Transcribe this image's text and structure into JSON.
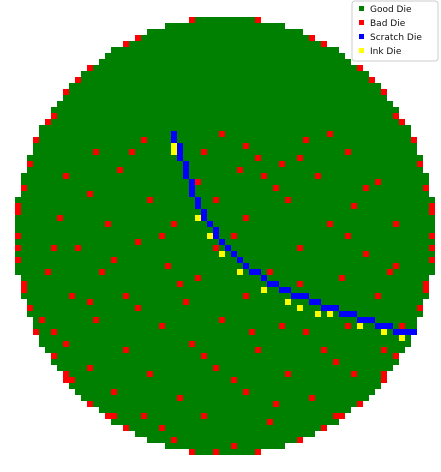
{
  "chart_data": {
    "type": "scatter",
    "title": "",
    "xlabel": "",
    "ylabel": "",
    "grid": false,
    "axes_visible": false,
    "legend_position": "top-right",
    "wafer_grid": {
      "columns": 70,
      "rows": 73
    },
    "series": [
      {
        "name": "Good Die",
        "color": "#008000"
      },
      {
        "name": "Bad Die",
        "color": "#ff0000"
      },
      {
        "name": "Scratch Die",
        "color": "#0000ff"
      },
      {
        "name": "Ink Die",
        "color": "#ffff00"
      }
    ],
    "bad_dies": [
      [
        21,
        20
      ],
      [
        34,
        19
      ],
      [
        48,
        20
      ],
      [
        52,
        19
      ],
      [
        13,
        22
      ],
      [
        31,
        22
      ],
      [
        38,
        21
      ],
      [
        47,
        23
      ],
      [
        55,
        22
      ],
      [
        8,
        26
      ],
      [
        17,
        25
      ],
      [
        30,
        27
      ],
      [
        41,
        26
      ],
      [
        50,
        26
      ],
      [
        60,
        27
      ],
      [
        12,
        29
      ],
      [
        22,
        30
      ],
      [
        33,
        30
      ],
      [
        45,
        30
      ],
      [
        56,
        31
      ],
      [
        7,
        33
      ],
      [
        15,
        34
      ],
      [
        26,
        34
      ],
      [
        38,
        33
      ],
      [
        52,
        34
      ],
      [
        63,
        34
      ],
      [
        10,
        38
      ],
      [
        20,
        37
      ],
      [
        33,
        38
      ],
      [
        47,
        38
      ],
      [
        58,
        39
      ],
      [
        5,
        42
      ],
      [
        14,
        42
      ],
      [
        25,
        41
      ],
      [
        30,
        43
      ],
      [
        42,
        42
      ],
      [
        54,
        43
      ],
      [
        62,
        42
      ],
      [
        9,
        46
      ],
      [
        18,
        46
      ],
      [
        28,
        47
      ],
      [
        38,
        46
      ],
      [
        50,
        47
      ],
      [
        60,
        46
      ],
      [
        4,
        50
      ],
      [
        13,
        50
      ],
      [
        24,
        51
      ],
      [
        34,
        50
      ],
      [
        44,
        51
      ],
      [
        55,
        51
      ],
      [
        64,
        51
      ],
      [
        8,
        54
      ],
      [
        18,
        55
      ],
      [
        29,
        54
      ],
      [
        40,
        55
      ],
      [
        51,
        55
      ],
      [
        61,
        55
      ],
      [
        3,
        58
      ],
      [
        12,
        58
      ],
      [
        22,
        59
      ],
      [
        33,
        58
      ],
      [
        45,
        59
      ],
      [
        56,
        59
      ],
      [
        66,
        58
      ],
      [
        7,
        62
      ],
      [
        16,
        62
      ],
      [
        27,
        63
      ],
      [
        38,
        62
      ],
      [
        49,
        63
      ],
      [
        60,
        62
      ],
      [
        11,
        66
      ],
      [
        21,
        66
      ],
      [
        31,
        66
      ],
      [
        42,
        67
      ],
      [
        53,
        66
      ],
      [
        62,
        66
      ],
      [
        6,
        70
      ],
      [
        15,
        70
      ],
      [
        26,
        70
      ],
      [
        36,
        71
      ],
      [
        47,
        70
      ],
      [
        58,
        71
      ],
      [
        10,
        74
      ],
      [
        20,
        74
      ],
      [
        30,
        74
      ],
      [
        41,
        75
      ],
      [
        52,
        74
      ],
      [
        61,
        74
      ],
      [
        14,
        78
      ],
      [
        24,
        78
      ],
      [
        35,
        78
      ],
      [
        46,
        79
      ],
      [
        56,
        78
      ],
      [
        19,
        82
      ],
      [
        29,
        82
      ],
      [
        39,
        82
      ],
      [
        49,
        83
      ],
      [
        25,
        86
      ],
      [
        35,
        86
      ],
      [
        44,
        86
      ],
      [
        27,
        23
      ],
      [
        43,
        28
      ],
      [
        24,
        36
      ],
      [
        36,
        36
      ],
      [
        55,
        36
      ],
      [
        16,
        40
      ],
      [
        27,
        44
      ],
      [
        47,
        44
      ],
      [
        20,
        48
      ],
      [
        6,
        52
      ],
      [
        31,
        56
      ],
      [
        48,
        52
      ],
      [
        36,
        60
      ],
      [
        53,
        57
      ],
      [
        43,
        64
      ],
      [
        24,
        68
      ],
      [
        33,
        72
      ],
      [
        56,
        68
      ],
      [
        38,
        76
      ],
      [
        22,
        80
      ],
      [
        44,
        80
      ],
      [
        32,
        84
      ],
      [
        12,
        47
      ],
      [
        40,
        23
      ],
      [
        58,
        28
      ],
      [
        9,
        60
      ],
      [
        65,
        63
      ],
      [
        17,
        73
      ],
      [
        28,
        76
      ],
      [
        59,
        50
      ],
      [
        19,
        22
      ],
      [
        37,
        25
      ],
      [
        44,
        24
      ],
      [
        6,
        38
      ],
      [
        63,
        41
      ],
      [
        39,
        52
      ],
      [
        16,
        66
      ],
      [
        50,
        77
      ],
      [
        30,
        79
      ],
      [
        21,
        83
      ]
    ],
    "scratch_dies": [
      [
        26,
        19
      ],
      [
        26,
        20
      ],
      [
        27,
        21
      ],
      [
        27,
        22
      ],
      [
        27,
        23
      ],
      [
        28,
        24
      ],
      [
        28,
        25
      ],
      [
        28,
        26
      ],
      [
        29,
        27
      ],
      [
        29,
        28
      ],
      [
        29,
        29
      ],
      [
        30,
        30
      ],
      [
        30,
        31
      ],
      [
        31,
        32
      ],
      [
        31,
        33
      ],
      [
        32,
        34
      ],
      [
        33,
        35
      ],
      [
        33,
        36
      ],
      [
        34,
        37
      ],
      [
        35,
        38
      ],
      [
        36,
        39
      ],
      [
        37,
        40
      ],
      [
        38,
        41
      ],
      [
        39,
        42
      ],
      [
        40,
        42
      ],
      [
        41,
        43
      ],
      [
        42,
        44
      ],
      [
        43,
        44
      ],
      [
        44,
        45
      ],
      [
        45,
        45
      ],
      [
        46,
        46
      ],
      [
        47,
        46
      ],
      [
        48,
        46
      ],
      [
        49,
        47
      ],
      [
        50,
        47
      ],
      [
        51,
        48
      ],
      [
        52,
        48
      ],
      [
        53,
        48
      ],
      [
        54,
        49
      ],
      [
        55,
        49
      ],
      [
        56,
        49
      ],
      [
        57,
        50
      ],
      [
        58,
        50
      ],
      [
        59,
        50
      ],
      [
        60,
        51
      ],
      [
        61,
        51
      ],
      [
        62,
        51
      ],
      [
        63,
        52
      ],
      [
        64,
        52
      ],
      [
        65,
        52
      ],
      [
        66,
        52
      ],
      [
        67,
        53
      ],
      [
        68,
        53
      ]
    ],
    "ink_dies": [
      [
        26,
        21
      ],
      [
        26,
        22
      ],
      [
        30,
        33
      ],
      [
        32,
        36
      ],
      [
        34,
        39
      ],
      [
        37,
        42
      ],
      [
        41,
        45
      ],
      [
        45,
        47
      ],
      [
        47,
        48
      ],
      [
        50,
        49
      ],
      [
        52,
        49
      ],
      [
        57,
        51
      ],
      [
        61,
        52
      ],
      [
        64,
        53
      ]
    ]
  }
}
